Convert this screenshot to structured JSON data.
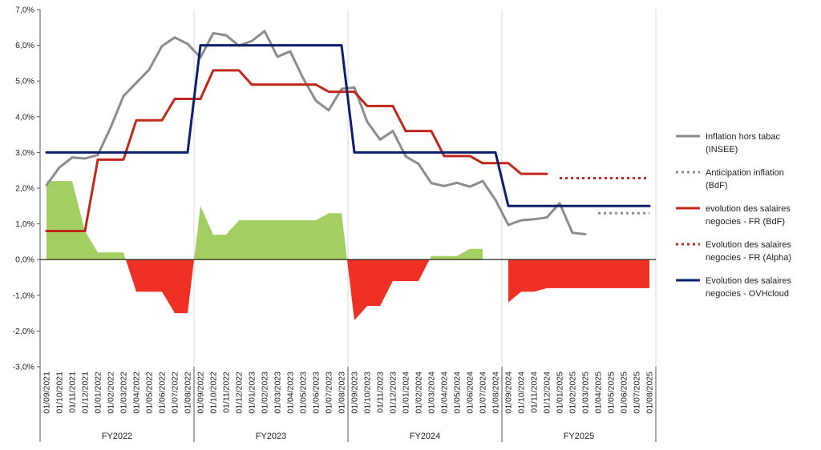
{
  "chart_data": {
    "type": "line",
    "title": "",
    "xlabel": "",
    "ylabel": "",
    "ylim": [
      -3,
      7
    ],
    "yticks": [
      -3,
      -2,
      -1,
      0,
      1,
      2,
      3,
      4,
      5,
      6,
      7
    ],
    "ytick_labels": [
      "-3,0%",
      "-2,0%",
      "-1,0%",
      "0,0%",
      "1,0%",
      "2,0%",
      "3,0%",
      "4,0%",
      "5,0%",
      "6,0%",
      "7,0%"
    ],
    "grid": "vertical",
    "legend_position": "right",
    "x": [
      "01/09/2021",
      "01/10/2021",
      "01/11/2021",
      "01/12/2021",
      "01/01/2022",
      "01/02/2022",
      "01/03/2022",
      "01/04/2022",
      "01/05/2022",
      "01/06/2022",
      "01/07/2022",
      "01/08/2022",
      "01/09/2022",
      "01/10/2022",
      "01/11/2022",
      "01/12/2022",
      "01/01/2023",
      "01/02/2023",
      "01/03/2023",
      "01/04/2023",
      "01/05/2023",
      "01/06/2023",
      "01/07/2023",
      "01/08/2023",
      "01/09/2023",
      "01/10/2023",
      "01/11/2023",
      "01/12/2023",
      "01/01/2024",
      "01/02/2024",
      "01/03/2024",
      "01/04/2024",
      "01/05/2024",
      "01/06/2024",
      "01/07/2024",
      "01/08/2024",
      "01/09/2024",
      "01/10/2024",
      "01/11/2024",
      "01/12/2024",
      "01/01/2025",
      "01/02/2025",
      "01/03/2025",
      "01/04/2025",
      "01/05/2025",
      "01/06/2025",
      "01/07/2025",
      "01/08/2025"
    ],
    "groups": [
      {
        "label": "FY2022",
        "start": 0,
        "end": 11
      },
      {
        "label": "FY2023",
        "start": 12,
        "end": 23
      },
      {
        "label": "FY2024",
        "start": 24,
        "end": 35
      },
      {
        "label": "FY2025",
        "start": 36,
        "end": 47
      }
    ],
    "area": {
      "values": [
        2.2,
        2.2,
        2.2,
        0.8,
        0.2,
        0.2,
        0.2,
        -0.9,
        -0.9,
        -0.9,
        -1.5,
        -1.5,
        1.5,
        0.7,
        0.7,
        1.1,
        1.1,
        1.1,
        1.1,
        1.1,
        1.1,
        1.1,
        1.3,
        1.3,
        -1.7,
        -1.3,
        -1.3,
        -0.6,
        -0.6,
        -0.6,
        0.1,
        0.1,
        0.1,
        0.3,
        0.3,
        null,
        -1.2,
        -0.9,
        -0.9,
        -0.8,
        -0.8,
        -0.8,
        -0.8,
        -0.8,
        -0.8,
        -0.8,
        -0.8,
        -0.8
      ],
      "positive_color": "#a3cf62",
      "negative_color": "#ee3124"
    },
    "series": [
      {
        "name": "Inflation hors tabac (INSEE)",
        "color": "#8c8c8c",
        "style": "solid",
        "values": [
          2.08,
          2.58,
          2.86,
          2.83,
          2.93,
          3.7,
          4.58,
          4.95,
          5.32,
          5.98,
          6.22,
          6.04,
          5.66,
          6.34,
          6.28,
          5.99,
          6.12,
          6.4,
          5.68,
          5.83,
          5.08,
          4.45,
          4.18,
          4.78,
          4.82,
          3.86,
          3.36,
          3.6,
          2.89,
          2.68,
          2.14,
          2.06,
          2.15,
          2.04,
          2.2,
          1.67,
          0.97,
          1.1,
          1.13,
          1.18,
          1.58,
          0.75,
          0.71,
          null,
          null,
          null,
          null,
          null
        ]
      },
      {
        "name": "Anticipation inflation (BdF)",
        "color": "#8c8c8c",
        "style": "dotted",
        "values": [
          null,
          null,
          null,
          null,
          null,
          null,
          null,
          null,
          null,
          null,
          null,
          null,
          null,
          null,
          null,
          null,
          null,
          null,
          null,
          null,
          null,
          null,
          null,
          null,
          null,
          null,
          null,
          null,
          null,
          null,
          null,
          null,
          null,
          null,
          null,
          null,
          null,
          null,
          null,
          null,
          null,
          null,
          null,
          1.3,
          1.3,
          1.3,
          1.3,
          1.3
        ]
      },
      {
        "name": "evolution des salaires negocies - FR (BdF)",
        "color": "#c0281b",
        "style": "solid",
        "values": [
          0.8,
          0.8,
          0.8,
          0.8,
          2.8,
          2.8,
          2.8,
          3.9,
          3.9,
          3.9,
          4.5,
          4.5,
          4.5,
          5.3,
          5.3,
          5.3,
          4.9,
          4.9,
          4.9,
          4.9,
          4.9,
          4.9,
          4.7,
          4.7,
          4.7,
          4.3,
          4.3,
          4.3,
          3.6,
          3.6,
          3.6,
          2.9,
          2.9,
          2.9,
          2.7,
          2.7,
          2.7,
          2.4,
          2.4,
          2.4,
          null,
          null,
          null,
          null,
          null,
          null,
          null,
          null
        ]
      },
      {
        "name": "Evolution des salaires negocies - FR (Alpha)",
        "color": "#c0281b",
        "style": "dotted",
        "values": [
          null,
          null,
          null,
          null,
          null,
          null,
          null,
          null,
          null,
          null,
          null,
          null,
          null,
          null,
          null,
          null,
          null,
          null,
          null,
          null,
          null,
          null,
          null,
          null,
          null,
          null,
          null,
          null,
          null,
          null,
          null,
          null,
          null,
          null,
          null,
          null,
          null,
          null,
          null,
          null,
          2.28,
          2.28,
          2.28,
          2.28,
          2.28,
          2.28,
          2.28,
          2.28
        ]
      },
      {
        "name": "Evolution des salaires negocies - OVHcloud",
        "color": "#0e1e6e",
        "style": "solid",
        "values": [
          3,
          3,
          3,
          3,
          3,
          3,
          3,
          3,
          3,
          3,
          3,
          3,
          6,
          6,
          6,
          6,
          6,
          6,
          6,
          6,
          6,
          6,
          6,
          6,
          3,
          3,
          3,
          3,
          3,
          3,
          3,
          3,
          3,
          3,
          3,
          3,
          1.5,
          1.5,
          1.5,
          1.5,
          1.5,
          1.5,
          1.5,
          1.5,
          1.5,
          1.5,
          1.5,
          1.5
        ]
      }
    ],
    "legend": [
      {
        "line1": "Inflation hors tabac",
        "line2": "(INSEE)",
        "color": "#8c8c8c",
        "style": "solid"
      },
      {
        "line1": "Anticipation inflation",
        "line2": "(BdF)",
        "color": "#8c8c8c",
        "style": "dotted"
      },
      {
        "line1": "evolution des salaires",
        "line2": "negocies - FR (BdF)",
        "color": "#c0281b",
        "style": "solid"
      },
      {
        "line1": "Evolution des salaires",
        "line2": "negocies - FR (Alpha)",
        "color": "#c0281b",
        "style": "dotted"
      },
      {
        "line1": "Evolution des salaires",
        "line2": "negocies - OVHcloud",
        "color": "#0e1e6e",
        "style": "solid"
      }
    ]
  }
}
